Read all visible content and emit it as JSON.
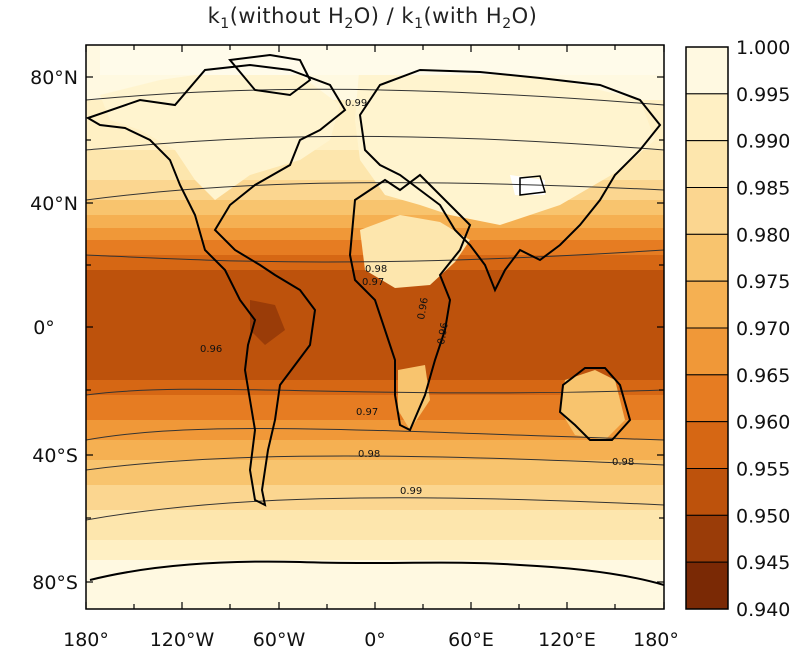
{
  "title": {
    "k_left": "k",
    "sub1": "1",
    "mid1": "(without H",
    "sub2": "2",
    "mid2": "O) / k",
    "sub3": "1",
    "mid3": "(with H",
    "sub4": "2",
    "end": "O)"
  },
  "lat_ticks": [
    "80°N",
    "40°N",
    "0°",
    "40°S",
    "80°S"
  ],
  "lon_ticks": [
    "180°",
    "120°W",
    "60°W",
    "0°",
    "60°E",
    "120°E",
    "180°"
  ],
  "colorbar": {
    "levels": [
      "1.000",
      "0.995",
      "0.990",
      "0.985",
      "0.980",
      "0.975",
      "0.970",
      "0.965",
      "0.960",
      "0.955",
      "0.950",
      "0.945",
      "0.940"
    ],
    "colors": [
      "#fff9e1",
      "#fff0c4",
      "#fde6ad",
      "#fbd690",
      "#f8c46e",
      "#f5b052",
      "#f09838",
      "#e67c22",
      "#d66714",
      "#bd520c",
      "#9a3c08",
      "#7a2905"
    ]
  },
  "contour_labels": [
    "0.99",
    "0.96",
    "0.98",
    "0.97",
    "0.96",
    "0.96",
    "0.96",
    "0.97",
    "0.98",
    "0.98",
    "0.99"
  ]
}
